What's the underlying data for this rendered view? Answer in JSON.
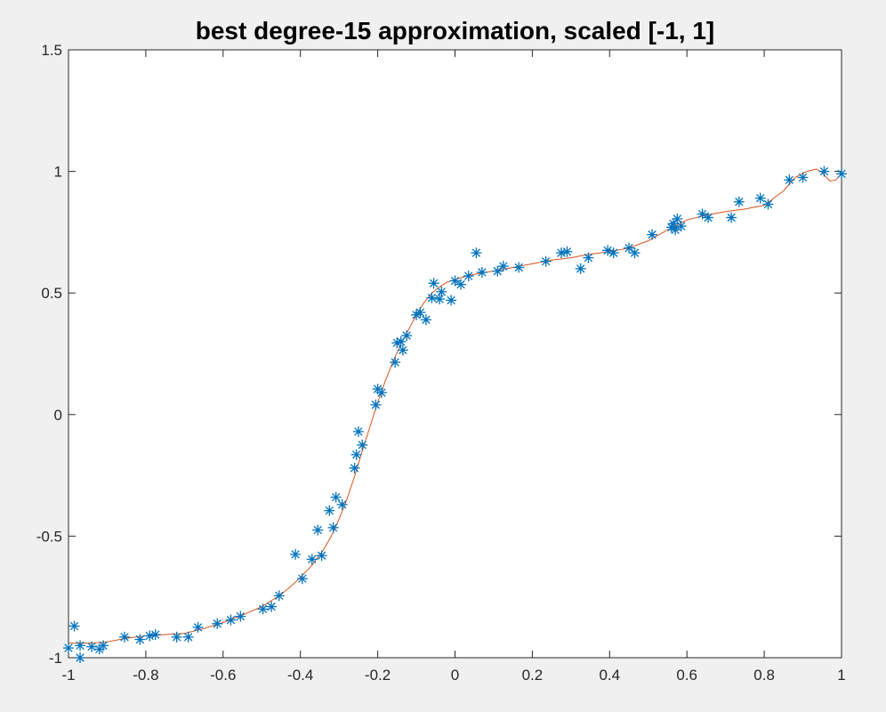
{
  "chart_data": {
    "type": "scatter",
    "title": "best degree-15 approximation, scaled [-1, 1]",
    "xlabel": "",
    "ylabel": "",
    "xlim": [
      -1,
      1
    ],
    "ylim": [
      -1,
      1.5
    ],
    "xticks": [
      -1,
      -0.8,
      -0.6,
      -0.4,
      -0.2,
      0,
      0.2,
      0.4,
      0.6,
      0.8,
      1
    ],
    "xtick_labels": [
      "-1",
      "-0.8",
      "-0.6",
      "-0.4",
      "-0.2",
      "0",
      "0.2",
      "0.4",
      "0.6",
      "0.8",
      "1"
    ],
    "yticks": [
      -1,
      -0.5,
      0,
      0.5,
      1,
      1.5
    ],
    "ytick_labels": [
      "-1",
      "-0.5",
      "0",
      "0.5",
      "1",
      "1.5"
    ],
    "grid": false,
    "series": [
      {
        "marker": "asterisk",
        "color": "#0072bd",
        "points": [
          [
            -1.0,
            -0.96
          ],
          [
            -0.985,
            -0.87
          ],
          [
            -0.97,
            -1.0
          ],
          [
            -0.97,
            -0.95
          ],
          [
            -0.94,
            -0.955
          ],
          [
            -0.92,
            -0.965
          ],
          [
            -0.91,
            -0.95
          ],
          [
            -0.855,
            -0.915
          ],
          [
            -0.815,
            -0.925
          ],
          [
            -0.79,
            -0.91
          ],
          [
            -0.775,
            -0.905
          ],
          [
            -0.72,
            -0.915
          ],
          [
            -0.69,
            -0.915
          ],
          [
            -0.665,
            -0.875
          ],
          [
            -0.615,
            -0.86
          ],
          [
            -0.58,
            -0.845
          ],
          [
            -0.555,
            -0.83
          ],
          [
            -0.497,
            -0.8
          ],
          [
            -0.475,
            -0.79
          ],
          [
            -0.455,
            -0.745
          ],
          [
            -0.413,
            -0.575
          ],
          [
            -0.395,
            -0.675
          ],
          [
            -0.37,
            -0.595
          ],
          [
            -0.355,
            -0.475
          ],
          [
            -0.345,
            -0.58
          ],
          [
            -0.325,
            -0.395
          ],
          [
            -0.315,
            -0.465
          ],
          [
            -0.308,
            -0.34
          ],
          [
            -0.292,
            -0.37
          ],
          [
            -0.26,
            -0.22
          ],
          [
            -0.255,
            -0.165
          ],
          [
            -0.25,
            -0.07
          ],
          [
            -0.24,
            -0.125
          ],
          [
            -0.205,
            0.04
          ],
          [
            -0.2,
            0.105
          ],
          [
            -0.19,
            0.09
          ],
          [
            -0.155,
            0.215
          ],
          [
            -0.15,
            0.295
          ],
          [
            -0.14,
            0.3
          ],
          [
            -0.135,
            0.265
          ],
          [
            -0.125,
            0.325
          ],
          [
            -0.1,
            0.41
          ],
          [
            -0.09,
            0.42
          ],
          [
            -0.075,
            0.39
          ],
          [
            -0.06,
            0.48
          ],
          [
            -0.055,
            0.54
          ],
          [
            -0.04,
            0.475
          ],
          [
            -0.035,
            0.505
          ],
          [
            -0.01,
            0.47
          ],
          [
            0.0,
            0.55
          ],
          [
            0.015,
            0.535
          ],
          [
            0.035,
            0.57
          ],
          [
            0.055,
            0.665
          ],
          [
            0.07,
            0.585
          ],
          [
            0.11,
            0.59
          ],
          [
            0.125,
            0.61
          ],
          [
            0.165,
            0.605
          ],
          [
            0.235,
            0.63
          ],
          [
            0.275,
            0.665
          ],
          [
            0.29,
            0.67
          ],
          [
            0.325,
            0.6
          ],
          [
            0.345,
            0.645
          ],
          [
            0.395,
            0.675
          ],
          [
            0.41,
            0.665
          ],
          [
            0.45,
            0.685
          ],
          [
            0.465,
            0.665
          ],
          [
            0.51,
            0.74
          ],
          [
            0.56,
            0.77
          ],
          [
            0.565,
            0.785
          ],
          [
            0.57,
            0.76
          ],
          [
            0.575,
            0.805
          ],
          [
            0.585,
            0.775
          ],
          [
            0.64,
            0.825
          ],
          [
            0.655,
            0.81
          ],
          [
            0.715,
            0.81
          ],
          [
            0.735,
            0.875
          ],
          [
            0.79,
            0.89
          ],
          [
            0.81,
            0.865
          ],
          [
            0.865,
            0.965
          ],
          [
            0.9,
            0.975
          ],
          [
            0.955,
            1.0
          ],
          [
            1.0,
            0.99
          ]
        ]
      },
      {
        "line": "fit",
        "color": "#d95319",
        "points": [
          [
            -1.0,
            -0.94
          ],
          [
            -0.97,
            -0.94
          ],
          [
            -0.94,
            -0.94
          ],
          [
            -0.9,
            -0.935
          ],
          [
            -0.85,
            -0.92
          ],
          [
            -0.8,
            -0.91
          ],
          [
            -0.75,
            -0.905
          ],
          [
            -0.7,
            -0.9
          ],
          [
            -0.65,
            -0.88
          ],
          [
            -0.6,
            -0.855
          ],
          [
            -0.55,
            -0.825
          ],
          [
            -0.5,
            -0.79
          ],
          [
            -0.45,
            -0.74
          ],
          [
            -0.42,
            -0.7
          ],
          [
            -0.4,
            -0.67
          ],
          [
            -0.37,
            -0.62
          ],
          [
            -0.34,
            -0.555
          ],
          [
            -0.32,
            -0.5
          ],
          [
            -0.3,
            -0.43
          ],
          [
            -0.28,
            -0.35
          ],
          [
            -0.26,
            -0.255
          ],
          [
            -0.24,
            -0.15
          ],
          [
            -0.22,
            -0.05
          ],
          [
            -0.2,
            0.05
          ],
          [
            -0.18,
            0.14
          ],
          [
            -0.16,
            0.22
          ],
          [
            -0.14,
            0.29
          ],
          [
            -0.12,
            0.35
          ],
          [
            -0.1,
            0.41
          ],
          [
            -0.08,
            0.46
          ],
          [
            -0.06,
            0.5
          ],
          [
            -0.04,
            0.525
          ],
          [
            -0.02,
            0.545
          ],
          [
            0.0,
            0.555
          ],
          [
            0.03,
            0.57
          ],
          [
            0.06,
            0.58
          ],
          [
            0.1,
            0.59
          ],
          [
            0.15,
            0.605
          ],
          [
            0.2,
            0.62
          ],
          [
            0.25,
            0.635
          ],
          [
            0.3,
            0.645
          ],
          [
            0.35,
            0.66
          ],
          [
            0.4,
            0.67
          ],
          [
            0.45,
            0.685
          ],
          [
            0.5,
            0.715
          ],
          [
            0.55,
            0.76
          ],
          [
            0.6,
            0.8
          ],
          [
            0.65,
            0.82
          ],
          [
            0.7,
            0.835
          ],
          [
            0.75,
            0.845
          ],
          [
            0.8,
            0.86
          ],
          [
            0.85,
            0.92
          ],
          [
            0.88,
            0.975
          ],
          [
            0.91,
            1.0
          ],
          [
            0.935,
            1.01
          ],
          [
            0.95,
            0.995
          ],
          [
            0.97,
            0.96
          ],
          [
            0.985,
            0.965
          ],
          [
            1.0,
            0.99
          ]
        ]
      }
    ]
  }
}
